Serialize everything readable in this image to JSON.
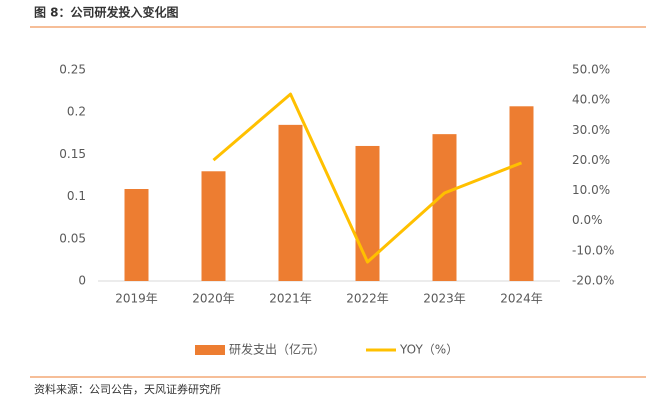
{
  "chart_data": {
    "type": "bar-line",
    "title": "图 8：公司研发投入变化图",
    "source": "资料来源：公司公告，天风证券研究所",
    "categories": [
      "2019年",
      "2020年",
      "2021年",
      "2022年",
      "2023年",
      "2024年"
    ],
    "series": [
      {
        "name": "研发支出（亿元）",
        "type": "bar",
        "color": "#ED7D31",
        "values": [
          0.109,
          0.13,
          0.185,
          0.16,
          0.174,
          0.207
        ]
      },
      {
        "name": "YOY（%）",
        "type": "line",
        "axis": "y2",
        "color": "#FFC000",
        "values": [
          null,
          20.1,
          42.0,
          -13.7,
          9.2,
          19.2
        ]
      }
    ],
    "ylim": [
      0,
      0.25
    ],
    "yticks": [
      0,
      0.05,
      0.1,
      0.15,
      0.2,
      0.25
    ],
    "y2lim": [
      -20,
      50
    ],
    "y2ticks": [
      {
        "value": -20,
        "label": "-20.0%"
      },
      {
        "value": -10,
        "label": "-10.0%"
      },
      {
        "value": 0,
        "label": "0.0%"
      },
      {
        "value": 10,
        "label": "10.0%"
      },
      {
        "value": 20,
        "label": "20.0%"
      },
      {
        "value": 30,
        "label": "30.0%"
      },
      {
        "value": 40,
        "label": "40.0%"
      },
      {
        "value": 50,
        "label": "50.0%"
      }
    ],
    "grid": false,
    "legend": "bottom"
  }
}
